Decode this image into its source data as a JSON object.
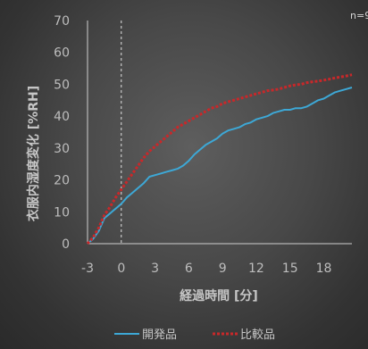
{
  "chart_data": {
    "type": "line",
    "sample_size_label": "n=9",
    "xlabel": "経過時間 [分]",
    "ylabel": "衣服内湿度変化 [%RH]",
    "xlim": [
      -3,
      20.5
    ],
    "ylim": [
      0,
      70
    ],
    "x_ticks": [
      "-3",
      "0",
      "3",
      "6",
      "9",
      "12",
      "15",
      "18"
    ],
    "y_ticks": [
      "0",
      "10",
      "20",
      "30",
      "40",
      "50",
      "60",
      "70"
    ],
    "grid": false,
    "reference_line": {
      "x": 0,
      "style": "dashed",
      "color": "#e0e0e0"
    },
    "legend_position": "bottom",
    "series": [
      {
        "name": "開発品",
        "color": "#3da8d6",
        "style": "solid",
        "x": [
          -3,
          -2.5,
          -2,
          -1.5,
          -1,
          -0.5,
          0,
          0.5,
          1,
          1.5,
          2,
          2.5,
          3,
          3.5,
          4,
          4.5,
          5,
          5.5,
          6,
          6.5,
          7,
          7.5,
          8,
          8.5,
          9,
          9.5,
          10,
          10.5,
          11,
          11.5,
          12,
          12.5,
          13,
          13.5,
          14,
          14.5,
          15,
          15.5,
          16,
          16.5,
          17,
          17.5,
          18,
          18.5,
          19,
          19.5,
          20,
          20.5
        ],
        "values": [
          0,
          1.5,
          4,
          8,
          9.5,
          11,
          12.5,
          14.5,
          16,
          17.5,
          19,
          21,
          21.5,
          22,
          22.5,
          23,
          23.5,
          24.5,
          26,
          28,
          29.5,
          31,
          32,
          33,
          34.5,
          35.5,
          36,
          36.5,
          37.5,
          38,
          39,
          39.5,
          40,
          41,
          41.5,
          42,
          42,
          42.5,
          42.5,
          43,
          44,
          45,
          45.5,
          46.5,
          47.5,
          48,
          48.5,
          49
        ]
      },
      {
        "name": "比較品",
        "color": "#c8282a",
        "style": "dashed",
        "x": [
          -3,
          -2.5,
          -2,
          -1.5,
          -1,
          -0.5,
          0,
          0.5,
          1,
          1.5,
          2,
          2.5,
          3,
          3.5,
          4,
          4.5,
          5,
          5.5,
          6,
          6.5,
          7,
          7.5,
          8,
          8.5,
          9,
          9.5,
          10,
          10.5,
          11,
          11.5,
          12,
          12.5,
          13,
          13.5,
          14,
          14.5,
          15,
          15.5,
          16,
          16.5,
          17,
          17.5,
          18,
          18.5,
          19,
          19.5,
          20,
          20.5
        ],
        "values": [
          0,
          2,
          5,
          9,
          11.5,
          14.5,
          17,
          19.5,
          22,
          24.5,
          27,
          29,
          30.5,
          32,
          33.5,
          35,
          36.5,
          37.5,
          38.5,
          39.5,
          40.5,
          41.5,
          42.5,
          43,
          44,
          44.5,
          45,
          45.5,
          46,
          46.5,
          47,
          47.5,
          48,
          48.2,
          48.5,
          49,
          49.5,
          49.8,
          50,
          50.5,
          50.8,
          51,
          51.3,
          51.6,
          52,
          52.3,
          52.6,
          53
        ]
      }
    ]
  }
}
